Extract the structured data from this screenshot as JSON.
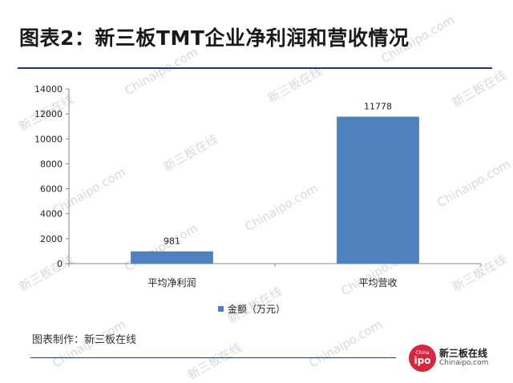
{
  "title": "图表2：新三板TMT企业净利润和营收情况",
  "watermark": {
    "cn": "新三板在线",
    "en": "Chinaipo.com"
  },
  "chart_data": {
    "type": "bar",
    "categories": [
      "平均净利润",
      "平均营收"
    ],
    "series": [
      {
        "name": "金额（万元）",
        "values": [
          981,
          11778
        ],
        "color": "#4f81bd"
      }
    ],
    "data_labels": [
      "981",
      "11778"
    ],
    "ylim": [
      0,
      14000
    ],
    "yticks": [
      0,
      2000,
      4000,
      6000,
      8000,
      10000,
      12000,
      14000
    ],
    "xlabel": "",
    "ylabel": "",
    "grid": false,
    "legend_position": "bottom"
  },
  "legend": {
    "label": "金额（万元）",
    "color": "#4f81bd"
  },
  "footer": {
    "note": "图表制作：新三板在线"
  },
  "logo": {
    "badge_top": "China",
    "badge_main": "ipo",
    "cn": "新三板在线",
    "en": "Chinaipo.com"
  }
}
